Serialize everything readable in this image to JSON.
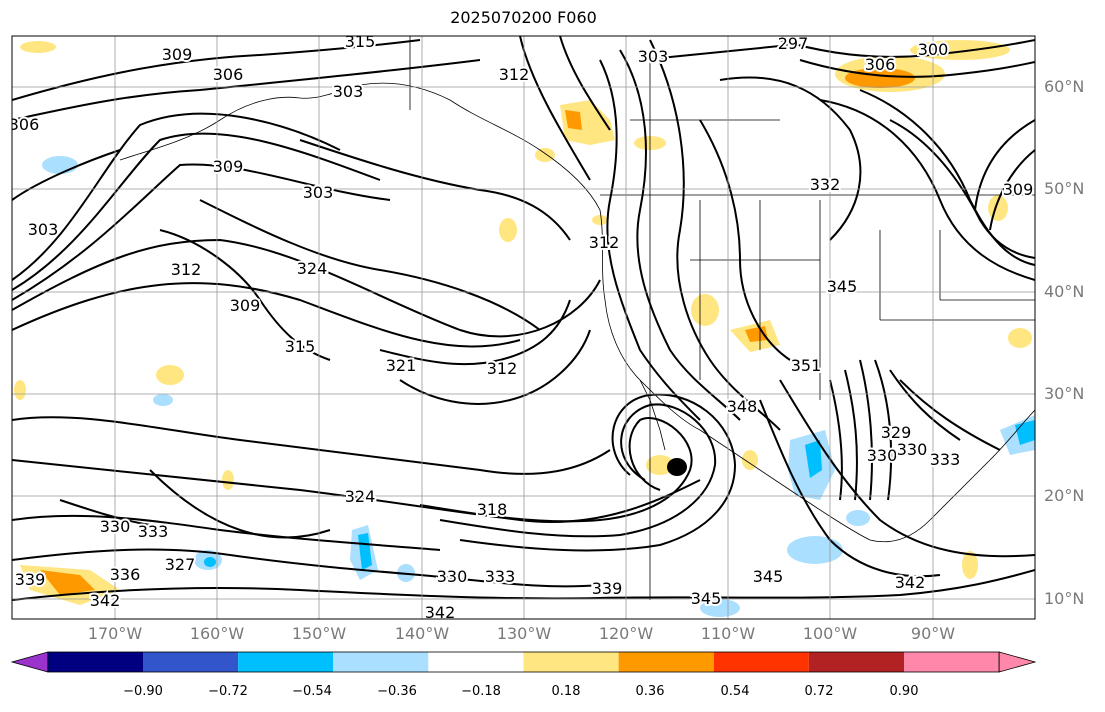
{
  "title": "2025070200 F060",
  "map": {
    "lon_labels": [
      "170°W",
      "160°W",
      "150°W",
      "140°W",
      "130°W",
      "120°W",
      "110°W",
      "100°W",
      "90°W"
    ],
    "lat_labels": [
      "60°N",
      "50°N",
      "40°N",
      "30°N",
      "20°N",
      "10°N"
    ],
    "contour_labels": [
      "315",
      "309",
      "306",
      "303",
      "306",
      "309",
      "303",
      "303",
      "312",
      "324",
      "309",
      "315",
      "321",
      "312",
      "324",
      "318",
      "330",
      "333",
      "339",
      "342",
      "345",
      "345",
      "342",
      "339",
      "330",
      "333",
      "312",
      "332",
      "345",
      "351",
      "348",
      "330",
      "330",
      "329",
      "300",
      "297",
      "303",
      "312",
      "306",
      "327",
      "333",
      "336",
      "342",
      "309"
    ],
    "colorbar": {
      "ticks": [
        "−0.90",
        "−0.72",
        "−0.54",
        "−0.36",
        "−0.18",
        "0.18",
        "0.36",
        "0.54",
        "0.72",
        "0.90"
      ],
      "colors": [
        "#9933cc",
        "#000080",
        "#3355cc",
        "#00bfff",
        "#aadfff",
        "#ffffff",
        "#ffe680",
        "#ff9900",
        "#ff3300",
        "#b22222",
        "#ff88aa"
      ]
    }
  }
}
